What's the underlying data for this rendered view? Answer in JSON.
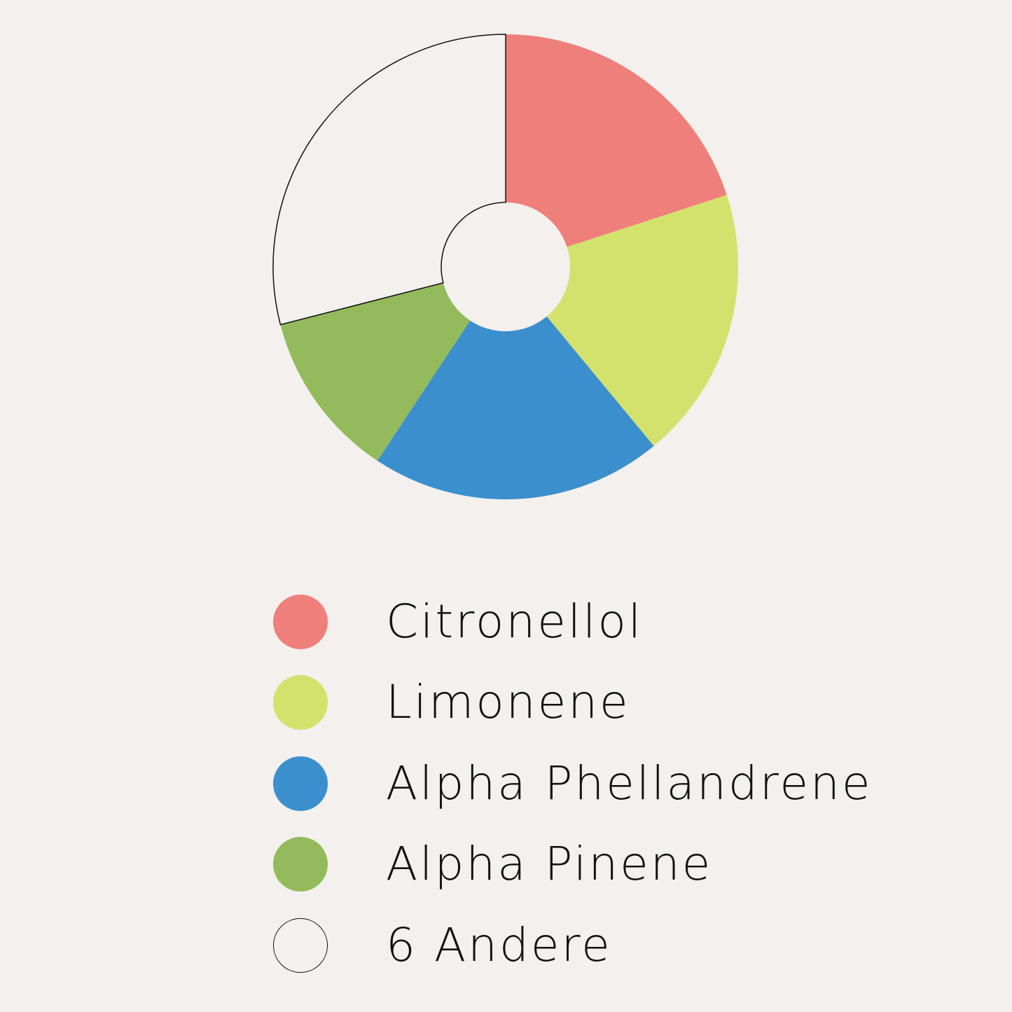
{
  "chart_data": {
    "type": "donut",
    "title": "",
    "categories": [
      "Citronellol",
      "Limonene",
      "Alpha Phellandrene",
      "Alpha Pinene",
      "6 Andere"
    ],
    "values": [
      20.0,
      19.0,
      20.3,
      11.7,
      29.0
    ],
    "unit": "%",
    "colors": [
      "#ee7f7a",
      "#d3e26c",
      "#3b8fcd",
      "#93ba5b",
      "#f3f0ed"
    ],
    "start_angle_deg": 0,
    "direction": "clockwise",
    "legend_position": "bottom",
    "grid": false
  },
  "legend": {
    "items": [
      {
        "label": "Citronellol",
        "color": "#ee7f7a"
      },
      {
        "label": "Limonene",
        "color": "#d3e26c"
      },
      {
        "label": "Alpha Phellandrene",
        "color": "#3b8fcd"
      },
      {
        "label": "Alpha Pinene",
        "color": "#93ba5b"
      },
      {
        "label": "6 Andere",
        "color": "#f3f0ed",
        "outlined": true
      }
    ]
  }
}
